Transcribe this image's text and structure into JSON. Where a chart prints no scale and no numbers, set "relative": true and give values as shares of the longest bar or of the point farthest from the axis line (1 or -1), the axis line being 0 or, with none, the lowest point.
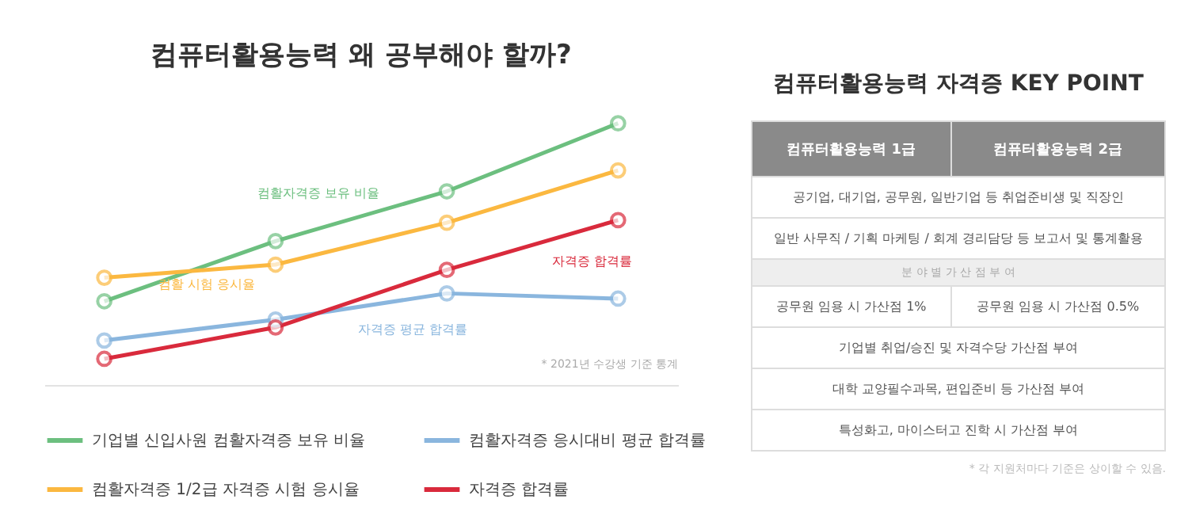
{
  "chart_data": [
    {
      "type": "line",
      "title": "컴퓨터활용능력 왜 공부해야 할까?",
      "relative": true,
      "categories": [
        null,
        null,
        null,
        null
      ],
      "marker": "circle",
      "legend": "bottom",
      "series": [
        {
          "name": "기업별 신입사원 컴활자격증 보유 비율",
          "color": "#6cbf7f",
          "values": [
            0.32,
            0.55,
            0.74,
            1
          ]
        },
        {
          "name": "컴활자격증 응시대비 평균 합격률",
          "color": "#8ab6de",
          "values": [
            0.17,
            0.25,
            0.35,
            0.33
          ]
        },
        {
          "name": "컴활자격증 1/2급 자격증 시험 응시율",
          "color": "#fbb840",
          "values": [
            0.41,
            0.46,
            0.62,
            0.82
          ]
        },
        {
          "name": "자격증 합격률",
          "color": "#d92a3c",
          "values": [
            0.1,
            0.22,
            0.44,
            0.63
          ]
        }
      ],
      "annotations": [
        "컴활자격증 보유 비율",
        "자격증 평균 합격률",
        "컴활 시험 응시율",
        "자격증 합격률",
        "* 2021년 수강생 기준 통계"
      ]
    },
    {
      "type": "other",
      "title": "컴퓨터활용능력 자격증 KEY POINT",
      "annotations": [
        "컴퓨터활용능력 1급",
        "컴퓨터활용능력 2급",
        "공기업, 대기업, 공무원, 일반기업 등 취업준비생 및 직장인",
        "일반 사무직 / 기획 마케팅 / 회계 경리담당 등 보고서 및 통계활용",
        "분 야 별   가 산 점   부 여",
        "공무원 임용 시 가산점 1%",
        "공무원 임용 시 가산점 0.5%",
        "기업별 취업/승진 및 자격수당 가산점 부여",
        "대학 교양필수과목, 편입준비 등 가산점 부여",
        "특성화고, 마이스터고 진학 시 가산점 부여",
        "* 각 지원처마다 기준은 상이할 수 있음."
      ]
    }
  ]
}
